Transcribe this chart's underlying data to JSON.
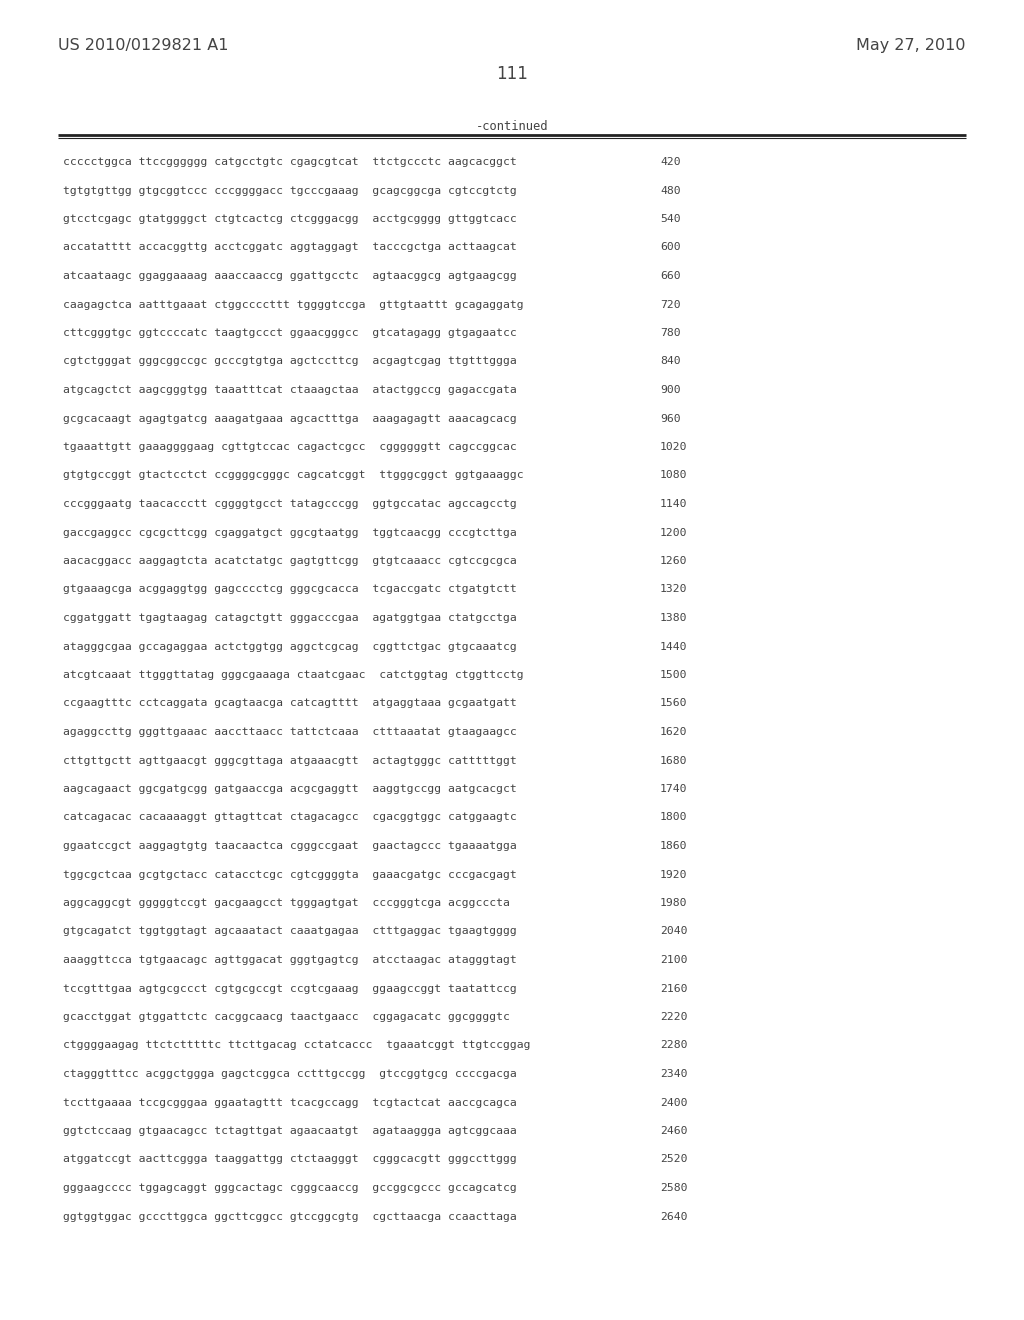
{
  "header_left": "US 2010/0129821 A1",
  "header_right": "May 27, 2010",
  "page_number": "111",
  "continued_label": "-continued",
  "background_color": "#ffffff",
  "text_color": "#444444",
  "font_size_header": 11.5,
  "font_size_body": 8.2,
  "font_size_page": 12,
  "sequence_lines": [
    [
      "ccccctggca ttccgggggg catgcctgtc cgagcgtcat  ttctgccctc aagcacggct",
      "420"
    ],
    [
      "tgtgtgttgg gtgcggtccc cccggggacc tgcccgaaag  gcagcggcga cgtccgtctg",
      "480"
    ],
    [
      "gtcctcgagc gtatggggct ctgtcactcg ctcgggacgg  acctgcgggg gttggtcacc",
      "540"
    ],
    [
      "accatatttt accacggttg acctcggatc aggtaggagt  tacccgctga acttaagcat",
      "600"
    ],
    [
      "atcaataagc ggaggaaaag aaaccaaccg ggattgcctc  agtaacggcg agtgaagcgg",
      "660"
    ],
    [
      "caagagctca aatttgaaat ctggccccttt tggggtccga  gttgtaattt gcagaggatg",
      "720"
    ],
    [
      "cttcgggtgc ggtccccatc taagtgccct ggaacgggcc  gtcatagagg gtgagaatcc",
      "780"
    ],
    [
      "cgtctgggat gggcggccgc gcccgtgtga agctccttcg  acgagtcgag ttgtttggga",
      "840"
    ],
    [
      "atgcagctct aagcgggtgg taaatttcat ctaaagctaa  atactggccg gagaccgata",
      "900"
    ],
    [
      "gcgcacaagt agagtgatcg aaagatgaaa agcactttga  aaagagagtt aaacagcacg",
      "960"
    ],
    [
      "tgaaattgtt gaaaggggaag cgttgtccac cagactcgcc  cggggggtt cagccggcac",
      "1020"
    ],
    [
      "gtgtgccggt gtactcctct ccggggcgggc cagcatcggt  ttgggcggct ggtgaaaggc",
      "1080"
    ],
    [
      "cccgggaatg taacaccctt cggggtgcct tatagcccgg  ggtgccatac agccagcctg",
      "1140"
    ],
    [
      "gaccgaggcc cgcgcttcgg cgaggatgct ggcgtaatgg  tggtcaacgg cccgtcttga",
      "1200"
    ],
    [
      "aacacggacc aaggagtcta acatctatgc gagtgttcgg  gtgtcaaacc cgtccgcgca",
      "1260"
    ],
    [
      "gtgaaagcga acggaggtgg gagcccctcg gggcgcacca  tcgaccgatc ctgatgtctt",
      "1320"
    ],
    [
      "cggatggatt tgagtaagag catagctgtt gggacccgaa  agatggtgaa ctatgcctga",
      "1380"
    ],
    [
      "atagggcgaa gccagaggaa actctggtgg aggctcgcag  cggttctgac gtgcaaatcg",
      "1440"
    ],
    [
      "atcgtcaaat ttgggttatag gggcgaaaga ctaatcgaac  catctggtag ctggttcctg",
      "1500"
    ],
    [
      "ccgaagtttc cctcaggata gcagtaacga catcagtttt  atgaggtaaa gcgaatgatt",
      "1560"
    ],
    [
      "agaggccttg gggttgaaac aaccttaacc tattctcaaa  ctttaaatat gtaagaagcc",
      "1620"
    ],
    [
      "cttgttgctt agttgaacgt gggcgttaga atgaaacgtt  actagtgggc catttttggt",
      "1680"
    ],
    [
      "aagcagaact ggcgatgcgg gatgaaccga acgcgaggtt  aaggtgccgg aatgcacgct",
      "1740"
    ],
    [
      "catcagacac cacaaaaggt gttagttcat ctagacagcc  cgacggtggc catggaagtc",
      "1800"
    ],
    [
      "ggaatccgct aaggagtgtg taacaactca cgggccgaat  gaactagccc tgaaaatgga",
      "1860"
    ],
    [
      "tggcgctcaa gcgtgctacc catacctcgc cgtcggggta  gaaacgatgc cccgacgagt",
      "1920"
    ],
    [
      "aggcaggcgt gggggtccgt gacgaagcct tgggagtgat  cccgggtcga acggcccta",
      "1980"
    ],
    [
      "gtgcagatct tggtggtagt agcaaatact caaatgagaa  ctttgaggac tgaagtgggg",
      "2040"
    ],
    [
      "aaaggttcca tgtgaacagc agttggacat gggtgagtcg  atcctaagac atagggtagt",
      "2100"
    ],
    [
      "tccgtttgaa agtgcgccct cgtgcgccgt ccgtcgaaag  ggaagccggt taatattccg",
      "2160"
    ],
    [
      "gcacctggat gtggattctc cacggcaacg taactgaacc  cggagacatc ggcggggtc",
      "2220"
    ],
    [
      "ctggggaagag ttctctttttc ttcttgacag cctatcaccc  tgaaatcggt ttgtccggag",
      "2280"
    ],
    [
      "ctagggtttcc acggctggga gagctcggca cctttgccgg  gtccggtgcg ccccgacga",
      "2340"
    ],
    [
      "tccttgaaaa tccgcgggaa ggaatagttt tcacgccagg  tcgtactcat aaccgcagca",
      "2400"
    ],
    [
      "ggtctccaag gtgaacagcc tctagttgat agaacaatgt  agataaggga agtcggcaaa",
      "2460"
    ],
    [
      "atggatccgt aacttcggga taaggattgg ctctaagggt  cgggcacgtt gggccttggg",
      "2520"
    ],
    [
      "gggaagcccc tggagcaggt gggcactagc cgggcaaccg  gccggcgccc gccagcatcg",
      "2580"
    ],
    [
      "ggtggtggac gcccttggca ggcttcggcc gtccggcgtg  cgcttaacga ccaacttaga",
      "2640"
    ]
  ]
}
